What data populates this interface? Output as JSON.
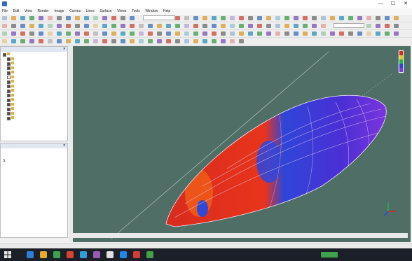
{
  "window": {
    "title": "",
    "controls": {
      "minimize": "—",
      "maximize": "☐",
      "close": "✕"
    }
  },
  "menubar": {
    "items": [
      "File",
      "Edit",
      "View",
      "Render",
      "Image",
      "Curves",
      "Lines",
      "Surface",
      "Views",
      "Tools",
      "Window",
      "Help"
    ]
  },
  "toolbars": {
    "row1_combo": "",
    "row2_combo": "",
    "icon_colors": [
      "#3a6fb5",
      "#c8463a",
      "#3c9a4a",
      "#d69b2b",
      "#6a6a6a",
      "#7a4fb0",
      "#2b8fb5"
    ]
  },
  "layers_panel": {
    "title": "",
    "items": [
      {
        "label": "",
        "checked": true
      },
      {
        "label": "",
        "checked": true
      },
      {
        "label": "",
        "checked": true
      },
      {
        "label": "",
        "checked": true
      },
      {
        "label": "",
        "checked": true
      },
      {
        "label": "",
        "checked": false
      },
      {
        "label": "",
        "checked": true
      },
      {
        "label": "",
        "checked": true
      },
      {
        "label": "",
        "checked": true
      },
      {
        "label": "",
        "checked": true
      },
      {
        "label": "",
        "checked": true
      },
      {
        "label": "",
        "checked": true
      },
      {
        "label": "",
        "checked": true
      },
      {
        "label": "",
        "checked": true
      },
      {
        "label": "",
        "checked": true
      }
    ]
  },
  "properties_panel": {
    "title": "",
    "field_label": "S."
  },
  "viewport": {
    "background_color": "#4f6e65",
    "colormap": [
      "#d62a1e",
      "#f04a1a",
      "#2a3fd8",
      "#5b2bd0",
      "#8a36e0"
    ]
  },
  "statusbar": {
    "left_text": "",
    "right_text": ""
  },
  "taskbar": {
    "icon_colors": [
      "#2f7fd6",
      "#e6a92a",
      "#3fa34d",
      "#d6452f",
      "#2f9fd6",
      "#9b59b6",
      "#e0e0e0",
      "#1e88e5",
      "#d63a3a",
      "#43a047"
    ],
    "tray_time": "",
    "tray_date": ""
  }
}
